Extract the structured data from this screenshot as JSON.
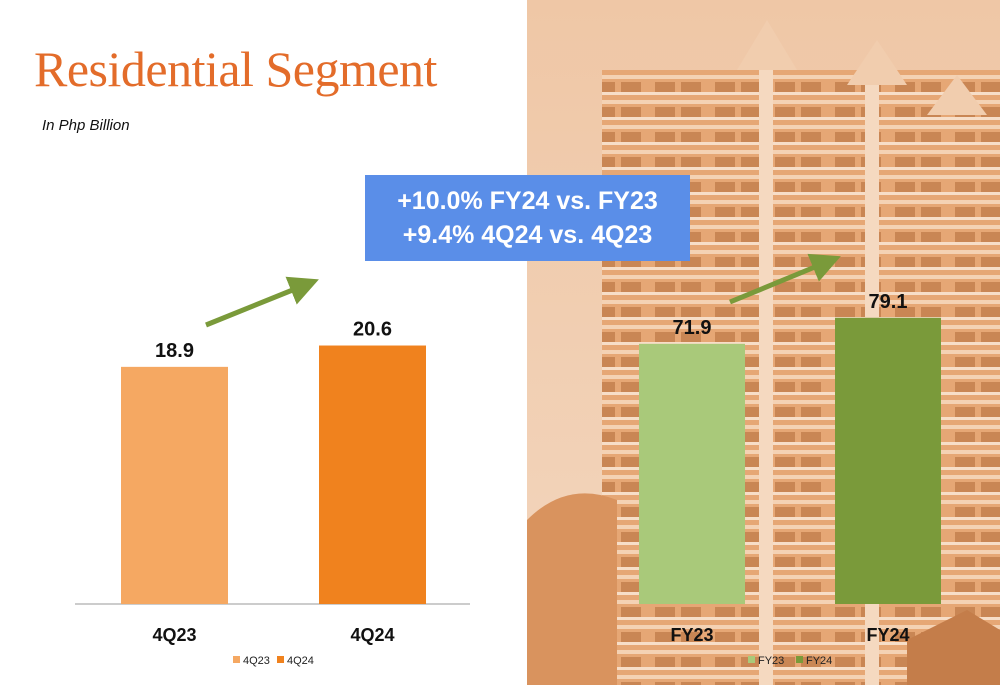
{
  "slide": {
    "title": "Residential Segment",
    "subtitle": "In Php Billion",
    "callout": {
      "line1": "+10.0% FY24 vs. FY23",
      "line2": "+9.4% 4Q24 vs. 4Q23"
    }
  },
  "colors": {
    "title": "#E36C2A",
    "callout_bg": "#5A8EE8",
    "arrow": "#7A9A3A",
    "photo_tint": "#E8B48C"
  },
  "chart_data": [
    {
      "type": "bar",
      "categories": [
        "4Q23",
        "4Q24"
      ],
      "values": [
        18.9,
        20.6
      ],
      "labels": [
        "18.9",
        "20.6"
      ],
      "colors": [
        "#F5A862",
        "#F0821E"
      ],
      "legend": [
        "4Q23",
        "4Q24"
      ],
      "legend_position": "bottom",
      "ylim": [
        0,
        26.3
      ],
      "grid": false
    },
    {
      "type": "bar",
      "categories": [
        "FY23",
        "FY24"
      ],
      "values": [
        71.9,
        79.1
      ],
      "labels": [
        "71.9",
        "79.1"
      ],
      "colors": [
        "#A9C97A",
        "#7A9A3A"
      ],
      "legend": [
        "FY23",
        "FY24"
      ],
      "legend_position": "bottom",
      "ylim": [
        0,
        91.2
      ],
      "grid": false
    }
  ]
}
